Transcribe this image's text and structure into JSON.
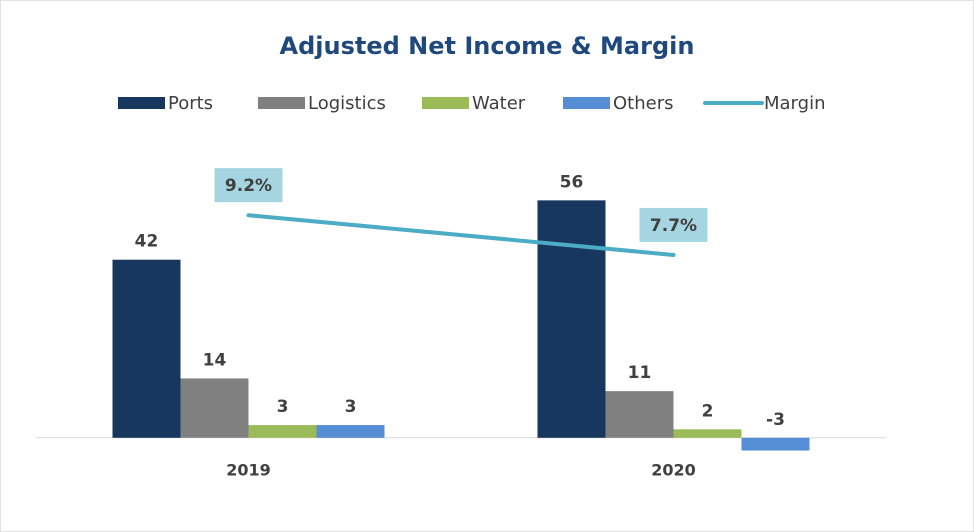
{
  "chart_data": {
    "type": "bar",
    "title": "Adjusted Net Income & Margin",
    "categories": [
      "2019",
      "2020"
    ],
    "series": [
      {
        "name": "Ports",
        "color": "#17375e",
        "values": [
          42,
          56
        ]
      },
      {
        "name": "Logistics",
        "color": "#808080",
        "values": [
          14,
          11
        ]
      },
      {
        "name": "Water",
        "color": "#9bbb59",
        "values": [
          3,
          2
        ]
      },
      {
        "name": "Others",
        "color": "#558ed5",
        "values": [
          3,
          -3
        ]
      },
      {
        "name": "Margin",
        "type": "line",
        "axis": "y2",
        "color": "#4bacc6",
        "values": [
          9.2,
          7.7
        ],
        "value_labels": [
          "9.2%",
          "7.7%"
        ]
      }
    ],
    "ylim": [
      -5,
      70
    ],
    "y2lim": [
      0,
      12
    ],
    "legend": "top"
  }
}
